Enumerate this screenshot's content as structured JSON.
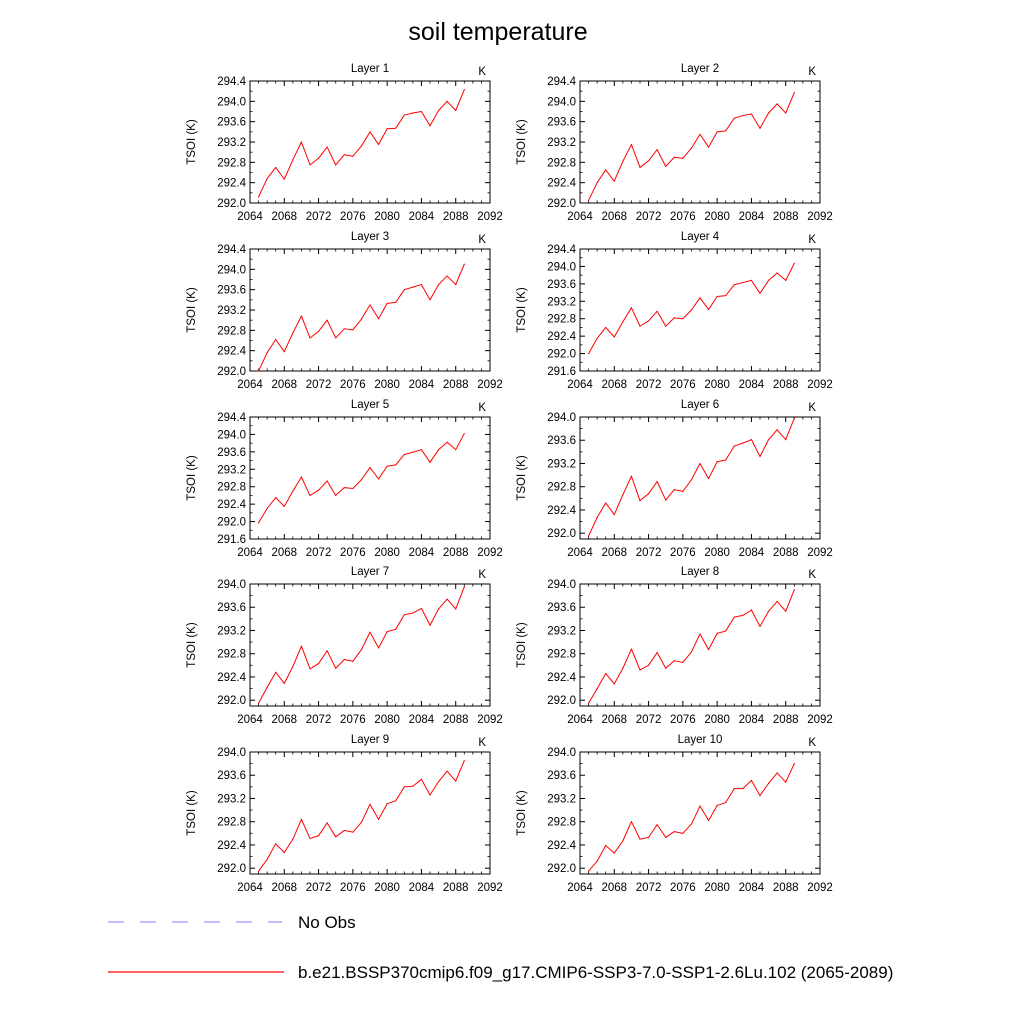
{
  "title": "soil temperature",
  "legend": {
    "placement": "bottom",
    "entries": [
      {
        "label": "No Obs",
        "color": "#9999ff",
        "dash": "dashed"
      },
      {
        "label": "b.e21.BSSP370cmip6.f09_g17.CMIP6-SSP3-7.0-SSP1-2.6Lu.102 (2065-2089)",
        "color": "#ff0000",
        "dash": "solid"
      }
    ]
  },
  "chart_data": [
    {
      "type": "line",
      "title": "Layer 1",
      "units": "K",
      "ylabel": "TSOI  (K)",
      "xlim": [
        2064,
        2092
      ],
      "ylim": [
        292.0,
        294.4
      ],
      "yticks": [
        292.0,
        292.4,
        292.8,
        293.2,
        293.6,
        294.0,
        294.4
      ],
      "xticks": [
        2064,
        2068,
        2072,
        2076,
        2080,
        2084,
        2088,
        2092
      ],
      "x": [
        2065,
        2066,
        2067,
        2068,
        2069,
        2070,
        2071,
        2072,
        2073,
        2074,
        2075,
        2076,
        2077,
        2078,
        2079,
        2080,
        2081,
        2082,
        2083,
        2084,
        2085,
        2086,
        2087,
        2088,
        2089
      ],
      "series": [
        {
          "name": "b.e21.BSSP370cmip6.f09_g17.CMIP6-SSP3-7.0-SSP1-2.6Lu.102 (2065-2089)",
          "values": [
            292.12,
            292.48,
            292.7,
            292.47,
            292.85,
            293.2,
            292.75,
            292.88,
            293.1,
            292.75,
            292.95,
            292.92,
            293.12,
            293.4,
            293.15,
            293.46,
            293.47,
            293.73,
            293.77,
            293.8,
            293.52,
            293.82,
            294.0,
            293.82,
            294.23
          ]
        }
      ]
    },
    {
      "type": "line",
      "title": "Layer 2",
      "units": "K",
      "ylabel": "TSOI  (K)",
      "xlim": [
        2064,
        2092
      ],
      "ylim": [
        292.0,
        294.4
      ],
      "yticks": [
        292.0,
        292.4,
        292.8,
        293.2,
        293.6,
        294.0,
        294.4
      ],
      "xticks": [
        2064,
        2068,
        2072,
        2076,
        2080,
        2084,
        2088,
        2092
      ],
      "x": [
        2065,
        2066,
        2067,
        2068,
        2069,
        2070,
        2071,
        2072,
        2073,
        2074,
        2075,
        2076,
        2077,
        2078,
        2079,
        2080,
        2081,
        2082,
        2083,
        2084,
        2085,
        2086,
        2087,
        2088,
        2089
      ],
      "series": [
        {
          "name": "b.e21.BSSP370cmip6.f09_g17.CMIP6-SSP3-7.0-SSP1-2.6Lu.102 (2065-2089)",
          "values": [
            292.05,
            292.4,
            292.65,
            292.43,
            292.82,
            293.15,
            292.7,
            292.83,
            293.05,
            292.72,
            292.9,
            292.88,
            293.08,
            293.35,
            293.1,
            293.4,
            293.42,
            293.67,
            293.72,
            293.75,
            293.47,
            293.77,
            293.95,
            293.77,
            294.17
          ]
        }
      ]
    },
    {
      "type": "line",
      "title": "Layer 3",
      "units": "K",
      "ylabel": "TSOI  (K)",
      "xlim": [
        2064,
        2092
      ],
      "ylim": [
        292.0,
        294.4
      ],
      "yticks": [
        292.0,
        292.4,
        292.8,
        293.2,
        293.6,
        294.0,
        294.4
      ],
      "xticks": [
        2064,
        2068,
        2072,
        2076,
        2080,
        2084,
        2088,
        2092
      ],
      "x": [
        2065,
        2066,
        2067,
        2068,
        2069,
        2070,
        2071,
        2072,
        2073,
        2074,
        2075,
        2076,
        2077,
        2078,
        2079,
        2080,
        2081,
        2082,
        2083,
        2084,
        2085,
        2086,
        2087,
        2088,
        2089
      ],
      "series": [
        {
          "name": "b.e21.BSSP370cmip6.f09_g17.CMIP6-SSP3-7.0-SSP1-2.6Lu.102 (2065-2089)",
          "values": [
            292.0,
            292.36,
            292.62,
            292.38,
            292.75,
            293.08,
            292.65,
            292.78,
            293.0,
            292.65,
            292.83,
            292.81,
            293.02,
            293.3,
            293.03,
            293.33,
            293.35,
            293.6,
            293.65,
            293.7,
            293.4,
            293.7,
            293.87,
            293.7,
            294.1
          ]
        }
      ]
    },
    {
      "type": "line",
      "title": "Layer 4",
      "units": "K",
      "ylabel": "TSOI  (K)",
      "xlim": [
        2064,
        2092
      ],
      "ylim": [
        291.6,
        294.4
      ],
      "yticks": [
        291.6,
        292.0,
        292.4,
        292.8,
        293.2,
        293.6,
        294.0,
        294.4
      ],
      "xticks": [
        2064,
        2068,
        2072,
        2076,
        2080,
        2084,
        2088,
        2092
      ],
      "x": [
        2065,
        2066,
        2067,
        2068,
        2069,
        2070,
        2071,
        2072,
        2073,
        2074,
        2075,
        2076,
        2077,
        2078,
        2079,
        2080,
        2081,
        2082,
        2083,
        2084,
        2085,
        2086,
        2087,
        2088,
        2089
      ],
      "series": [
        {
          "name": "b.e21.BSSP370cmip6.f09_g17.CMIP6-SSP3-7.0-SSP1-2.6Lu.102 (2065-2089)",
          "values": [
            292.0,
            292.35,
            292.6,
            292.38,
            292.73,
            293.05,
            292.63,
            292.75,
            292.97,
            292.63,
            292.82,
            292.8,
            293.0,
            293.28,
            293.01,
            293.31,
            293.33,
            293.58,
            293.63,
            293.68,
            293.38,
            293.68,
            293.85,
            293.68,
            294.07
          ]
        }
      ]
    },
    {
      "type": "line",
      "title": "Layer 5",
      "units": "K",
      "ylabel": "TSOI  (K)",
      "xlim": [
        2064,
        2092
      ],
      "ylim": [
        291.6,
        294.4
      ],
      "yticks": [
        291.6,
        292.0,
        292.4,
        292.8,
        293.2,
        293.6,
        294.0,
        294.4
      ],
      "xticks": [
        2064,
        2068,
        2072,
        2076,
        2080,
        2084,
        2088,
        2092
      ],
      "x": [
        2065,
        2066,
        2067,
        2068,
        2069,
        2070,
        2071,
        2072,
        2073,
        2074,
        2075,
        2076,
        2077,
        2078,
        2079,
        2080,
        2081,
        2082,
        2083,
        2084,
        2085,
        2086,
        2087,
        2088,
        2089
      ],
      "series": [
        {
          "name": "b.e21.BSSP370cmip6.f09_g17.CMIP6-SSP3-7.0-SSP1-2.6Lu.102 (2065-2089)",
          "values": [
            291.97,
            292.3,
            292.55,
            292.35,
            292.7,
            293.02,
            292.6,
            292.72,
            292.93,
            292.6,
            292.78,
            292.76,
            292.96,
            293.24,
            292.98,
            293.27,
            293.3,
            293.54,
            293.59,
            293.65,
            293.36,
            293.65,
            293.82,
            293.65,
            294.02
          ]
        }
      ]
    },
    {
      "type": "line",
      "title": "Layer 6",
      "units": "K",
      "ylabel": "TSOI  (K)",
      "xlim": [
        2064,
        2092
      ],
      "ylim": [
        291.9,
        294.0
      ],
      "yticks": [
        292.0,
        292.4,
        292.8,
        293.2,
        293.6,
        294.0
      ],
      "xticks": [
        2064,
        2068,
        2072,
        2076,
        2080,
        2084,
        2088,
        2092
      ],
      "x": [
        2065,
        2066,
        2067,
        2068,
        2069,
        2070,
        2071,
        2072,
        2073,
        2074,
        2075,
        2076,
        2077,
        2078,
        2079,
        2080,
        2081,
        2082,
        2083,
        2084,
        2085,
        2086,
        2087,
        2088,
        2089
      ],
      "series": [
        {
          "name": "b.e21.BSSP370cmip6.f09_g17.CMIP6-SSP3-7.0-SSP1-2.6Lu.102 (2065-2089)",
          "values": [
            291.95,
            292.27,
            292.52,
            292.32,
            292.66,
            292.98,
            292.56,
            292.68,
            292.89,
            292.57,
            292.75,
            292.72,
            292.92,
            293.2,
            292.94,
            293.23,
            293.26,
            293.5,
            293.55,
            293.61,
            293.32,
            293.61,
            293.78,
            293.61,
            293.98
          ]
        }
      ]
    },
    {
      "type": "line",
      "title": "Layer 7",
      "units": "K",
      "ylabel": "TSOI  (K)",
      "xlim": [
        2064,
        2092
      ],
      "ylim": [
        291.9,
        294.0
      ],
      "yticks": [
        292.0,
        292.4,
        292.8,
        293.2,
        293.6,
        294.0
      ],
      "xticks": [
        2064,
        2068,
        2072,
        2076,
        2080,
        2084,
        2088,
        2092
      ],
      "x": [
        2065,
        2066,
        2067,
        2068,
        2069,
        2070,
        2071,
        2072,
        2073,
        2074,
        2075,
        2076,
        2077,
        2078,
        2079,
        2080,
        2081,
        2082,
        2083,
        2084,
        2085,
        2086,
        2087,
        2088,
        2089
      ],
      "series": [
        {
          "name": "b.e21.BSSP370cmip6.f09_g17.CMIP6-SSP3-7.0-SSP1-2.6Lu.102 (2065-2089)",
          "values": [
            291.95,
            292.22,
            292.48,
            292.29,
            292.58,
            292.93,
            292.54,
            292.63,
            292.85,
            292.55,
            292.7,
            292.67,
            292.87,
            293.17,
            292.9,
            293.18,
            293.22,
            293.47,
            293.5,
            293.58,
            293.29,
            293.57,
            293.74,
            293.57,
            293.95
          ]
        }
      ]
    },
    {
      "type": "line",
      "title": "Layer 8",
      "units": "K",
      "ylabel": "TSOI  (K)",
      "xlim": [
        2064,
        2092
      ],
      "ylim": [
        291.9,
        294.0
      ],
      "yticks": [
        292.0,
        292.4,
        292.8,
        293.2,
        293.6,
        294.0
      ],
      "xticks": [
        2064,
        2068,
        2072,
        2076,
        2080,
        2084,
        2088,
        2092
      ],
      "x": [
        2065,
        2066,
        2067,
        2068,
        2069,
        2070,
        2071,
        2072,
        2073,
        2074,
        2075,
        2076,
        2077,
        2078,
        2079,
        2080,
        2081,
        2082,
        2083,
        2084,
        2085,
        2086,
        2087,
        2088,
        2089
      ],
      "series": [
        {
          "name": "b.e21.BSSP370cmip6.f09_g17.CMIP6-SSP3-7.0-SSP1-2.6Lu.102 (2065-2089)",
          "values": [
            291.95,
            292.2,
            292.46,
            292.28,
            292.55,
            292.88,
            292.52,
            292.6,
            292.82,
            292.55,
            292.68,
            292.65,
            292.83,
            293.14,
            292.87,
            293.15,
            293.19,
            293.43,
            293.46,
            293.55,
            293.27,
            293.53,
            293.7,
            293.53,
            293.9
          ]
        }
      ]
    },
    {
      "type": "line",
      "title": "Layer 9",
      "units": "K",
      "ylabel": "TSOI  (K)",
      "xlim": [
        2064,
        2092
      ],
      "ylim": [
        291.9,
        294.0
      ],
      "yticks": [
        292.0,
        292.4,
        292.8,
        293.2,
        293.6,
        294.0
      ],
      "xticks": [
        2064,
        2068,
        2072,
        2076,
        2080,
        2084,
        2088,
        2092
      ],
      "x": [
        2065,
        2066,
        2067,
        2068,
        2069,
        2070,
        2071,
        2072,
        2073,
        2074,
        2075,
        2076,
        2077,
        2078,
        2079,
        2080,
        2081,
        2082,
        2083,
        2084,
        2085,
        2086,
        2087,
        2088,
        2089
      ],
      "series": [
        {
          "name": "b.e21.BSSP370cmip6.f09_g17.CMIP6-SSP3-7.0-SSP1-2.6Lu.102 (2065-2089)",
          "values": [
            291.95,
            292.15,
            292.42,
            292.27,
            292.5,
            292.84,
            292.51,
            292.56,
            292.78,
            292.54,
            292.65,
            292.62,
            292.79,
            293.1,
            292.84,
            293.11,
            293.16,
            293.4,
            293.41,
            293.53,
            293.26,
            293.49,
            293.67,
            293.5,
            293.85
          ]
        }
      ]
    },
    {
      "type": "line",
      "title": "Layer 10",
      "units": "K",
      "ylabel": "TSOI  (K)",
      "xlim": [
        2064,
        2092
      ],
      "ylim": [
        291.9,
        294.0
      ],
      "yticks": [
        292.0,
        292.4,
        292.8,
        293.2,
        293.6,
        294.0
      ],
      "xticks": [
        2064,
        2068,
        2072,
        2076,
        2080,
        2084,
        2088,
        2092
      ],
      "x": [
        2065,
        2066,
        2067,
        2068,
        2069,
        2070,
        2071,
        2072,
        2073,
        2074,
        2075,
        2076,
        2077,
        2078,
        2079,
        2080,
        2081,
        2082,
        2083,
        2084,
        2085,
        2086,
        2087,
        2088,
        2089
      ],
      "series": [
        {
          "name": "b.e21.BSSP370cmip6.f09_g17.CMIP6-SSP3-7.0-SSP1-2.6Lu.102 (2065-2089)",
          "values": [
            291.95,
            292.12,
            292.39,
            292.26,
            292.47,
            292.8,
            292.5,
            292.53,
            292.75,
            292.53,
            292.63,
            292.6,
            292.76,
            293.07,
            292.82,
            293.08,
            293.13,
            293.37,
            293.37,
            293.51,
            293.25,
            293.46,
            293.64,
            293.48,
            293.8
          ]
        }
      ]
    }
  ]
}
